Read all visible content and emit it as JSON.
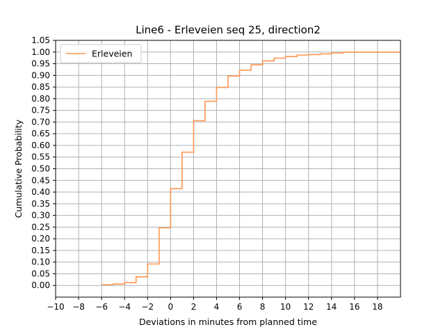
{
  "chart_data": {
    "type": "line",
    "title": "Line6 - Erleveien seq 25, direction2",
    "xlabel": "Deviations in minutes from planned time",
    "ylabel": "Cumulative Probability",
    "xlim": [
      -10,
      20
    ],
    "ylim": [
      -0.05,
      1.05
    ],
    "x_ticks": [
      -10,
      -8,
      -6,
      -4,
      -2,
      0,
      2,
      4,
      6,
      8,
      10,
      12,
      14,
      16,
      18
    ],
    "y_ticks": [
      0.0,
      0.05,
      0.1,
      0.15,
      0.2,
      0.25,
      0.3,
      0.35,
      0.4,
      0.45,
      0.5,
      0.55,
      0.6,
      0.65,
      0.7,
      0.75,
      0.8,
      0.85,
      0.9,
      0.95,
      1.0,
      1.05
    ],
    "x_tick_labels": [
      "−10",
      "−8",
      "−6",
      "−4",
      "−2",
      "0",
      "2",
      "4",
      "6",
      "8",
      "10",
      "12",
      "14",
      "16",
      "18"
    ],
    "y_tick_labels": [
      "0.00",
      "0.05",
      "0.10",
      "0.15",
      "0.20",
      "0.25",
      "0.30",
      "0.35",
      "0.40",
      "0.45",
      "0.50",
      "0.55",
      "0.60",
      "0.65",
      "0.70",
      "0.75",
      "0.80",
      "0.85",
      "0.90",
      "0.95",
      "1.00",
      "1.05"
    ],
    "grid": true,
    "legend_position": "top-left",
    "series": [
      {
        "name": "Erleveien",
        "color": "#ff9650",
        "step": "post",
        "x": [
          -6,
          -5,
          -4,
          -3,
          -2,
          -1,
          0,
          1,
          2,
          3,
          4,
          5,
          6,
          7,
          8,
          9,
          10,
          11,
          12,
          13,
          14,
          15,
          20
        ],
        "y": [
          0.003,
          0.006,
          0.012,
          0.037,
          0.092,
          0.247,
          0.415,
          0.571,
          0.706,
          0.789,
          0.848,
          0.897,
          0.922,
          0.945,
          0.962,
          0.974,
          0.981,
          0.987,
          0.989,
          0.992,
          0.996,
          0.999,
          0.999
        ]
      }
    ]
  }
}
